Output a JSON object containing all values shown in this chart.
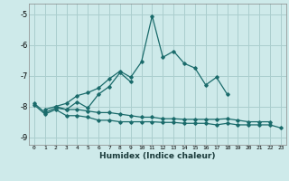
{
  "title": "",
  "xlabel": "Humidex (Indice chaleur)",
  "bg_color": "#ceeaea",
  "grid_color": "#aacece",
  "line_color": "#1a6b6b",
  "xlim": [
    -0.5,
    23.5
  ],
  "ylim": [
    -9.25,
    -4.65
  ],
  "yticks": [
    -9,
    -8,
    -7,
    -6,
    -5
  ],
  "xtick_labels": [
    "0",
    "1",
    "2",
    "3",
    "4",
    "5",
    "6",
    "7",
    "8",
    "9",
    "10",
    "11",
    "12",
    "13",
    "14",
    "15",
    "16",
    "17",
    "18",
    "19",
    "20",
    "21",
    "22",
    "23"
  ],
  "xticks": [
    0,
    1,
    2,
    3,
    4,
    5,
    6,
    7,
    8,
    9,
    10,
    11,
    12,
    13,
    14,
    15,
    16,
    17,
    18,
    19,
    20,
    21,
    22,
    23
  ],
  "series": [
    [
      null,
      -8.1,
      -8.0,
      -7.9,
      -7.65,
      -7.55,
      -7.4,
      -7.1,
      -6.85,
      -7.05,
      -6.55,
      -5.05,
      -6.4,
      -6.2,
      -6.6,
      -6.75,
      -7.3,
      -7.05,
      -7.6,
      null,
      null,
      null,
      null,
      null
    ],
    [
      null,
      null,
      -8.0,
      -8.1,
      -7.85,
      -8.05,
      -7.6,
      -7.35,
      -6.9,
      -7.2,
      null,
      null,
      null,
      null,
      null,
      null,
      null,
      null,
      null,
      null,
      null,
      null,
      null,
      null
    ],
    [
      -7.9,
      -8.2,
      -8.05,
      -8.1,
      -8.1,
      -8.15,
      -8.2,
      -8.2,
      -8.25,
      -8.3,
      -8.35,
      -8.35,
      -8.4,
      -8.4,
      -8.42,
      -8.42,
      -8.42,
      -8.42,
      -8.4,
      -8.45,
      -8.5,
      -8.5,
      -8.5,
      null
    ],
    [
      -7.95,
      -8.25,
      -8.1,
      -8.3,
      -8.3,
      -8.35,
      -8.45,
      -8.45,
      -8.5,
      -8.5,
      -8.5,
      -8.5,
      -8.52,
      -8.52,
      -8.55,
      -8.55,
      -8.55,
      -8.6,
      -8.55,
      -8.6,
      -8.6,
      -8.6,
      -8.6,
      -8.7
    ]
  ]
}
